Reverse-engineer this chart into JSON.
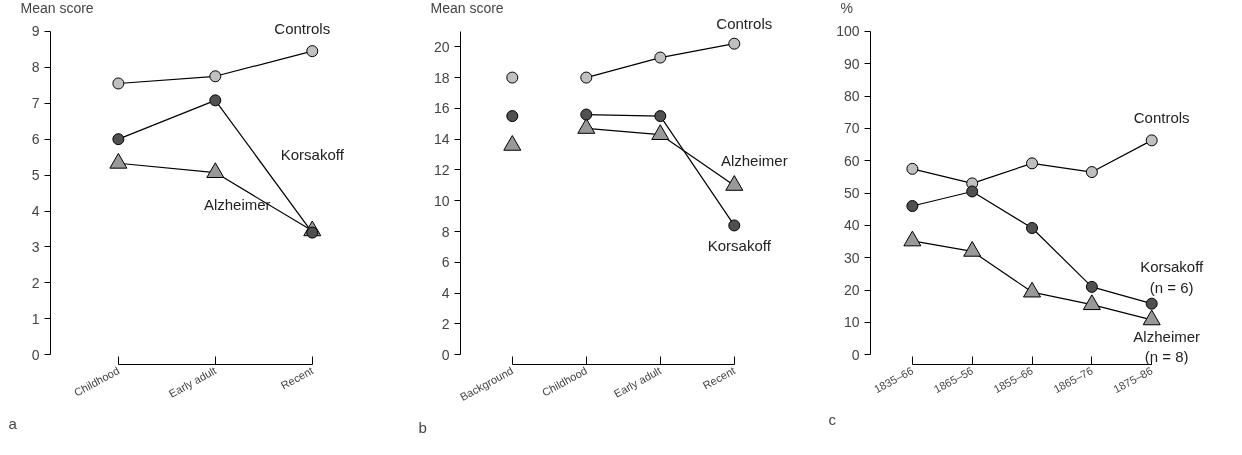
{
  "chart_data": [
    {
      "type": "line",
      "ylabel": "Mean score",
      "categories": [
        "Childhood",
        "Early adult",
        "Recent"
      ],
      "ylim": [
        0,
        9
      ],
      "yticks": [
        0,
        1,
        2,
        3,
        4,
        5,
        6,
        7,
        8,
        9
      ],
      "grid": false,
      "legend": false,
      "line_style": "solid",
      "annotations": [
        "a"
      ],
      "series": [
        {
          "name": "Controls",
          "color": "#c0c0c0",
          "marker": "circle",
          "values": [
            7.55,
            7.75,
            8.45
          ]
        },
        {
          "name": "Korsakoff",
          "color": "#505050",
          "marker": "circle",
          "values": [
            6.0,
            7.08,
            3.4
          ]
        },
        {
          "name": "Alzheimer",
          "color": "#999999",
          "marker": "triangle",
          "values": [
            5.33,
            5.07,
            3.45
          ]
        }
      ]
    },
    {
      "type": "line",
      "ylabel": "Mean score",
      "categories": [
        "Background",
        "Childhood",
        "Early adult",
        "Recent"
      ],
      "ylim": [
        0,
        21
      ],
      "yticks": [
        0,
        2,
        4,
        6,
        8,
        10,
        12,
        14,
        16,
        18,
        20
      ],
      "grid": false,
      "legend": false,
      "line_style": "solid",
      "annotations": [
        "b"
      ],
      "series": [
        {
          "name": "Controls",
          "color": "#c0c0c0",
          "marker": "circle",
          "values": [
            null,
            18.0,
            19.3,
            20.2
          ]
        },
        {
          "name": "Korsakoff",
          "color": "#505050",
          "marker": "circle",
          "values": [
            null,
            15.6,
            15.5,
            8.4
          ]
        },
        {
          "name": "Alzheimer",
          "color": "#999999",
          "marker": "triangle",
          "values": [
            null,
            14.7,
            14.3,
            11.0
          ]
        },
        {
          "type": "scatter",
          "color": "#c0c0c0",
          "marker": "circle",
          "values": [
            18.0,
            null,
            null,
            null
          ]
        },
        {
          "type": "scatter",
          "color": "#505050",
          "marker": "circle",
          "values": [
            15.5,
            null,
            null,
            null
          ]
        },
        {
          "type": "scatter",
          "color": "#999999",
          "marker": "triangle",
          "values": [
            13.6,
            null,
            null,
            null
          ]
        }
      ]
    },
    {
      "type": "line",
      "ylabel": "%",
      "categories": [
        "1835–66",
        "1865–56",
        "1855–66",
        "1865–76",
        "1875–86"
      ],
      "ylim": [
        0,
        100
      ],
      "yticks": [
        0,
        10,
        20,
        30,
        40,
        50,
        60,
        70,
        80,
        90,
        100
      ],
      "grid": false,
      "legend": false,
      "line_style": "solid",
      "annotations": [
        "c"
      ],
      "series": [
        {
          "name": "Controls",
          "color": "#c0c0c0",
          "marker": "circle",
          "values": [
            57.5,
            53.0,
            59.2,
            56.5,
            66.3
          ]
        },
        {
          "name": "Korsakoff\n(n = 6)",
          "color": "#505050",
          "marker": "circle",
          "values": [
            46.0,
            50.5,
            39.2,
            21.0,
            15.8
          ]
        },
        {
          "name": "Alzheimer\n(n = 8)",
          "color": "#999999",
          "marker": "triangle",
          "values": [
            35.2,
            32.0,
            19.4,
            15.5,
            10.8
          ]
        }
      ]
    }
  ]
}
